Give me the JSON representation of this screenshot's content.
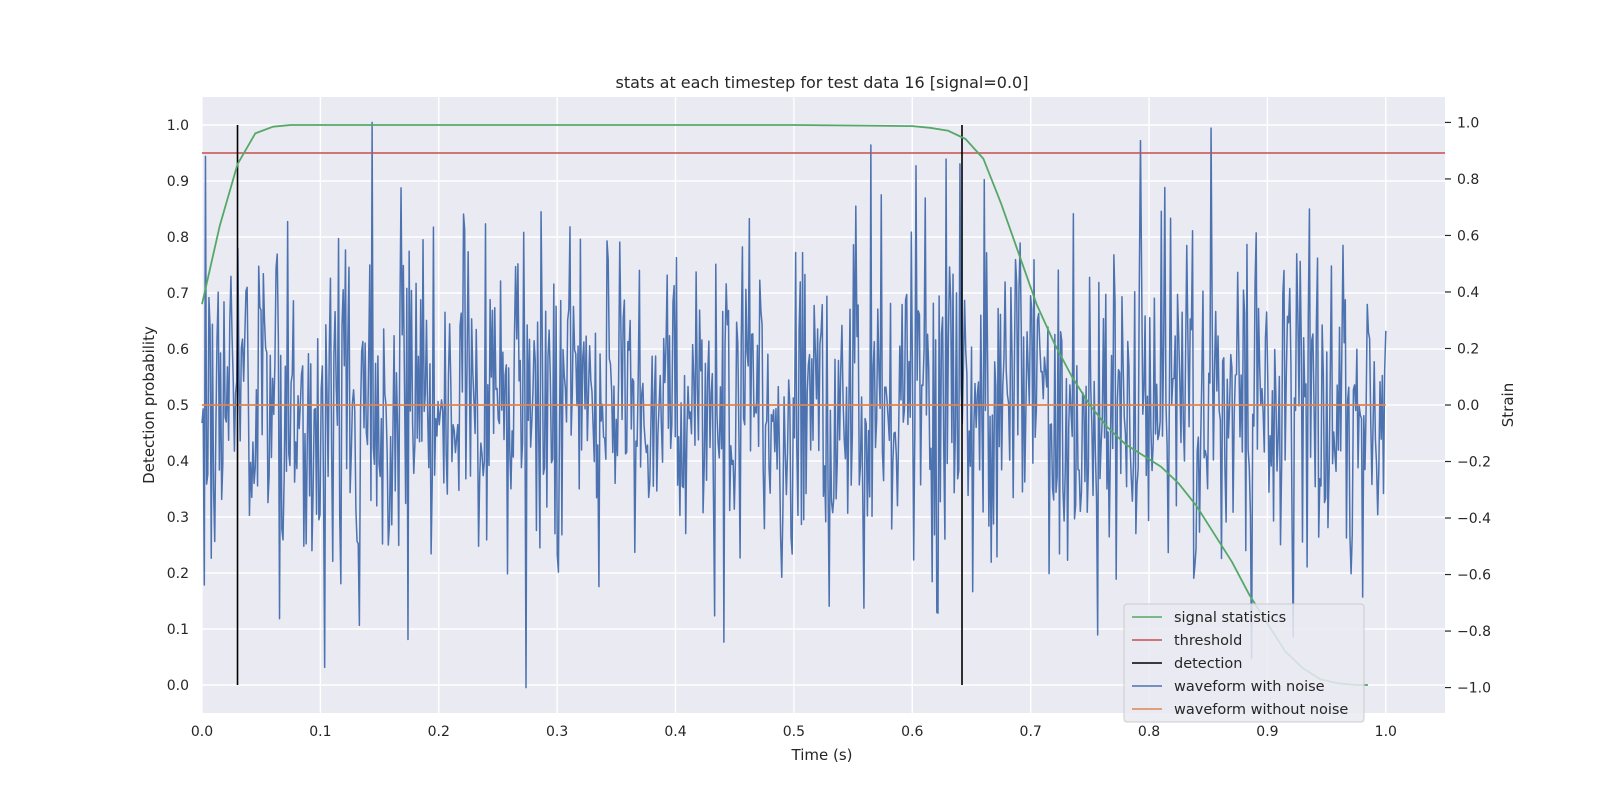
{
  "chart_data": {
    "type": "line",
    "title": "stats at each timestep for test data 16 [signal=0.0]",
    "xlabel": "Time (s)",
    "ylabel": "Detection probability",
    "y2label": "Strain",
    "xlim": [
      0.0,
      1.05
    ],
    "ylim": [
      -0.05,
      1.05
    ],
    "y2lim": [
      -1.09,
      1.09
    ],
    "xticks": [
      "0.0",
      "0.1",
      "0.2",
      "0.3",
      "0.4",
      "0.5",
      "0.6",
      "0.7",
      "0.8",
      "0.9",
      "1.0"
    ],
    "yticks": [
      "0.0",
      "0.1",
      "0.2",
      "0.3",
      "0.4",
      "0.5",
      "0.6",
      "0.7",
      "0.8",
      "0.9",
      "1.0"
    ],
    "y2ticks": [
      "−1.0",
      "−0.8",
      "−0.6",
      "−0.4",
      "−0.2",
      "0.0",
      "0.2",
      "0.4",
      "0.6",
      "0.8",
      "1.0"
    ],
    "grid": true,
    "legend_position": "lower-right",
    "colors": {
      "background": "#eaeaf2",
      "signal_statistics": "#55a868",
      "threshold": "#c44e52",
      "detection": "#000000",
      "waveform_with_noise": "#4c72b0",
      "waveform_without_noise": "#dd8452"
    },
    "legend": [
      "signal statistics",
      "threshold",
      "detection",
      "waveform with noise",
      "waveform without noise"
    ],
    "signal_statistics": {
      "axis": "left",
      "x": [
        0.0,
        0.015,
        0.03,
        0.045,
        0.06,
        0.075,
        0.1,
        0.2,
        0.3,
        0.4,
        0.5,
        0.6,
        0.615,
        0.63,
        0.645,
        0.66,
        0.675,
        0.69,
        0.705,
        0.72,
        0.735,
        0.75,
        0.765,
        0.78,
        0.795,
        0.81,
        0.825,
        0.84,
        0.855,
        0.87,
        0.885,
        0.9,
        0.915,
        0.93,
        0.945,
        0.96,
        0.975,
        0.985
      ],
      "y": [
        0.68,
        0.82,
        0.93,
        0.985,
        0.997,
        1.0,
        1.0,
        1.0,
        1.0,
        1.0,
        1.0,
        0.998,
        0.995,
        0.99,
        0.975,
        0.94,
        0.86,
        0.77,
        0.68,
        0.61,
        0.55,
        0.5,
        0.46,
        0.43,
        0.41,
        0.39,
        0.36,
        0.32,
        0.27,
        0.22,
        0.16,
        0.11,
        0.06,
        0.03,
        0.01,
        0.003,
        0.0,
        0.0
      ]
    },
    "threshold": {
      "axis": "left",
      "x": [
        0.0,
        1.05
      ],
      "y": [
        0.95,
        0.95
      ]
    },
    "detections": {
      "axis": "left",
      "x": [
        0.03,
        0.642
      ],
      "ymin": 0.0,
      "ymax": 1.0
    },
    "waveform_with_noise": {
      "axis": "right",
      "x_range": [
        0.0,
        1.0
      ],
      "samples": 1024,
      "noise_std": 0.3,
      "seed": 16,
      "marked_peaks": [
        {
          "x": 0.144,
          "y": 1.0
        },
        {
          "x": 0.274,
          "y": -1.0
        },
        {
          "x": 0.852,
          "y": 0.98
        },
        {
          "x": 0.565,
          "y": 0.92
        },
        {
          "x": 0.003,
          "y": 0.88
        },
        {
          "x": 0.174,
          "y": -0.83
        },
        {
          "x": 0.133,
          "y": -0.78
        },
        {
          "x": 0.922,
          "y": -0.82
        },
        {
          "x": 0.98,
          "y": -0.68
        }
      ]
    },
    "waveform_without_noise": {
      "axis": "right",
      "x": [
        0.0,
        1.0
      ],
      "y": [
        0.0,
        0.0
      ]
    }
  }
}
